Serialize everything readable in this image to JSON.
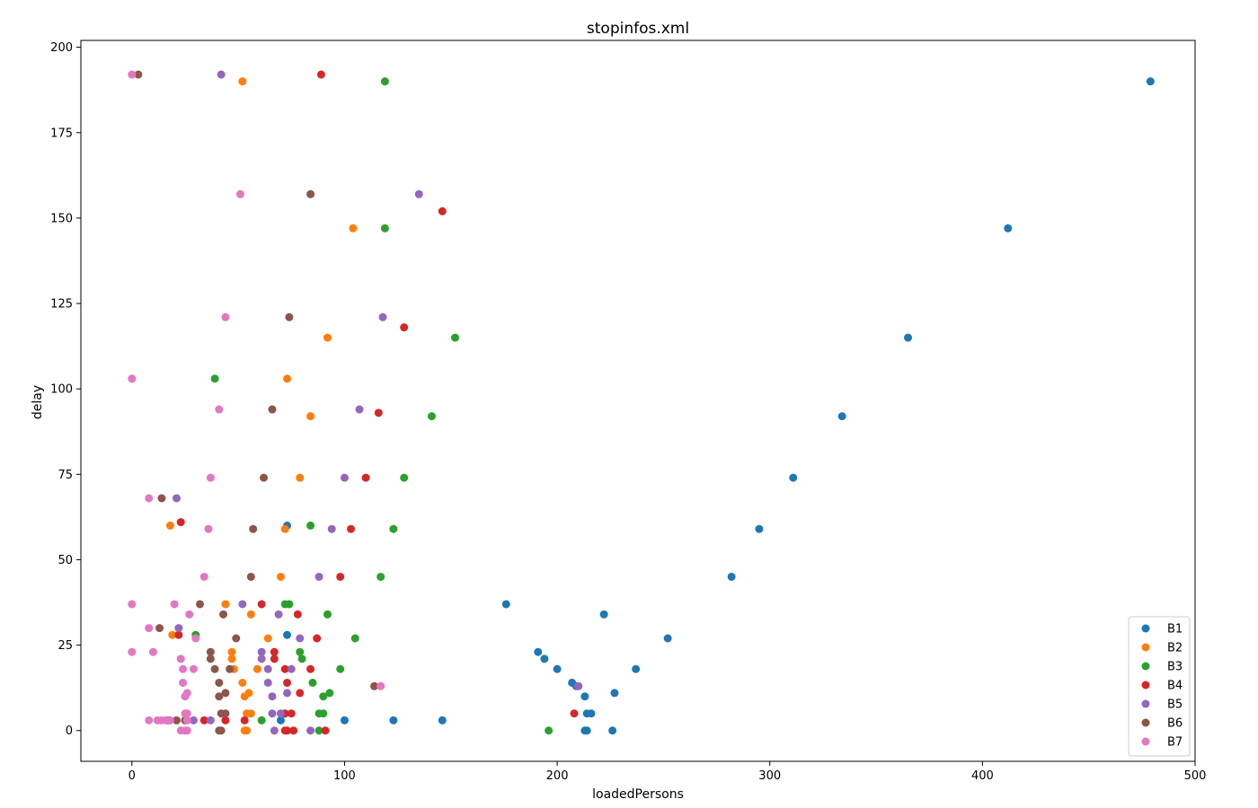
{
  "chart_data": {
    "type": "scatter",
    "title": "stopinfos.xml",
    "xlabel": "loadedPersons",
    "ylabel": "delay",
    "xlim": [
      -24,
      500
    ],
    "ylim": [
      -9,
      202
    ],
    "xticks": [
      0,
      100,
      200,
      300,
      400,
      500
    ],
    "yticks": [
      0,
      25,
      50,
      75,
      100,
      125,
      150,
      175,
      200
    ],
    "grid": false,
    "legend_position": "bottom-right",
    "series": [
      {
        "name": "B1",
        "color": "#1f77b4",
        "points": [
          [
            479,
            190
          ],
          [
            412,
            147
          ],
          [
            365,
            115
          ],
          [
            334,
            92
          ],
          [
            311,
            74
          ],
          [
            295,
            59
          ],
          [
            282,
            45
          ],
          [
            176,
            37
          ],
          [
            222,
            34
          ],
          [
            252,
            27
          ],
          [
            191,
            23
          ],
          [
            194,
            21
          ],
          [
            200,
            18
          ],
          [
            237,
            18
          ],
          [
            207,
            14
          ],
          [
            213,
            10
          ],
          [
            227,
            11
          ],
          [
            214,
            5
          ],
          [
            216,
            5
          ],
          [
            209,
            13
          ],
          [
            213,
            0
          ],
          [
            214,
            0
          ],
          [
            226,
            0
          ],
          [
            146,
            3
          ],
          [
            123,
            3
          ],
          [
            100,
            3
          ],
          [
            70,
            3
          ],
          [
            73,
            28
          ],
          [
            73,
            60
          ]
        ]
      },
      {
        "name": "B2",
        "color": "#ff7f0e",
        "points": [
          [
            52,
            190
          ],
          [
            104,
            147
          ],
          [
            92,
            115
          ],
          [
            73,
            103
          ],
          [
            84,
            92
          ],
          [
            79,
            74
          ],
          [
            18,
            60
          ],
          [
            72,
            59
          ],
          [
            70,
            45
          ],
          [
            44,
            37
          ],
          [
            56,
            34
          ],
          [
            64,
            27
          ],
          [
            19,
            28
          ],
          [
            47,
            23
          ],
          [
            47,
            21
          ],
          [
            48,
            18
          ],
          [
            59,
            18
          ],
          [
            52,
            14
          ],
          [
            55,
            11
          ],
          [
            53,
            10
          ],
          [
            54,
            5
          ],
          [
            56,
            5
          ],
          [
            53,
            0
          ],
          [
            54,
            0
          ]
        ]
      },
      {
        "name": "B3",
        "color": "#2ca02c",
        "points": [
          [
            119,
            190
          ],
          [
            119,
            147
          ],
          [
            152,
            115
          ],
          [
            39,
            103
          ],
          [
            141,
            92
          ],
          [
            128,
            74
          ],
          [
            84,
            60
          ],
          [
            123,
            59
          ],
          [
            117,
            45
          ],
          [
            72,
            37
          ],
          [
            74,
            37
          ],
          [
            92,
            34
          ],
          [
            105,
            27
          ],
          [
            30,
            28
          ],
          [
            79,
            23
          ],
          [
            80,
            21
          ],
          [
            98,
            18
          ],
          [
            85,
            14
          ],
          [
            93,
            11
          ],
          [
            90,
            10
          ],
          [
            88,
            5
          ],
          [
            90,
            5
          ],
          [
            196,
            0
          ],
          [
            88,
            0
          ],
          [
            61,
            3
          ]
        ]
      },
      {
        "name": "B4",
        "color": "#d62728",
        "points": [
          [
            89,
            192
          ],
          [
            146,
            152
          ],
          [
            128,
            118
          ],
          [
            116,
            93
          ],
          [
            110,
            74
          ],
          [
            23,
            61
          ],
          [
            103,
            59
          ],
          [
            98,
            45
          ],
          [
            61,
            37
          ],
          [
            78,
            34
          ],
          [
            87,
            27
          ],
          [
            22,
            28
          ],
          [
            67,
            23
          ],
          [
            67,
            21
          ],
          [
            72,
            18
          ],
          [
            84,
            18
          ],
          [
            73,
            14
          ],
          [
            79,
            11
          ],
          [
            208,
            5
          ],
          [
            75,
            5
          ],
          [
            72,
            5
          ],
          [
            72,
            0
          ],
          [
            73,
            0
          ],
          [
            76,
            0
          ],
          [
            91,
            0
          ],
          [
            53,
            3
          ],
          [
            44,
            3
          ],
          [
            34,
            3
          ]
        ]
      },
      {
        "name": "B5",
        "color": "#9467bd",
        "points": [
          [
            42,
            192
          ],
          [
            135,
            157
          ],
          [
            118,
            121
          ],
          [
            107,
            94
          ],
          [
            100,
            74
          ],
          [
            21,
            68
          ],
          [
            94,
            59
          ],
          [
            88,
            45
          ],
          [
            52,
            37
          ],
          [
            69,
            34
          ],
          [
            79,
            27
          ],
          [
            22,
            30
          ],
          [
            61,
            23
          ],
          [
            61,
            21
          ],
          [
            64,
            18
          ],
          [
            75,
            18
          ],
          [
            64,
            14
          ],
          [
            73,
            11
          ],
          [
            210,
            13
          ],
          [
            66,
            10
          ],
          [
            66,
            5
          ],
          [
            70,
            5
          ],
          [
            67,
            0
          ],
          [
            84,
            0
          ],
          [
            37,
            3
          ],
          [
            29,
            3
          ]
        ]
      },
      {
        "name": "B6",
        "color": "#8c564b",
        "points": [
          [
            3,
            192
          ],
          [
            84,
            157
          ],
          [
            74,
            121
          ],
          [
            66,
            94
          ],
          [
            62,
            74
          ],
          [
            14,
            68
          ],
          [
            57,
            59
          ],
          [
            56,
            45
          ],
          [
            32,
            37
          ],
          [
            43,
            34
          ],
          [
            49,
            27
          ],
          [
            13,
            30
          ],
          [
            37,
            23
          ],
          [
            37,
            21
          ],
          [
            39,
            18
          ],
          [
            46,
            18
          ],
          [
            41,
            14
          ],
          [
            44,
            11
          ],
          [
            114,
            13
          ],
          [
            41,
            10
          ],
          [
            42,
            5
          ],
          [
            44,
            5
          ],
          [
            41,
            0
          ],
          [
            42,
            0
          ],
          [
            25,
            3
          ],
          [
            21,
            3
          ],
          [
            17,
            3
          ]
        ]
      },
      {
        "name": "B7",
        "color": "#e377c2",
        "points": [
          [
            0,
            192
          ],
          [
            51,
            157
          ],
          [
            44,
            121
          ],
          [
            41,
            94
          ],
          [
            37,
            74
          ],
          [
            8,
            68
          ],
          [
            36,
            59
          ],
          [
            34,
            45
          ],
          [
            0,
            103
          ],
          [
            0,
            37
          ],
          [
            20,
            37
          ],
          [
            27,
            34
          ],
          [
            30,
            27
          ],
          [
            8,
            30
          ],
          [
            0,
            23
          ],
          [
            10,
            23
          ],
          [
            23,
            21
          ],
          [
            24,
            18
          ],
          [
            29,
            18
          ],
          [
            24,
            14
          ],
          [
            26,
            11
          ],
          [
            117,
            13
          ],
          [
            25,
            10
          ],
          [
            25,
            5
          ],
          [
            26,
            5
          ],
          [
            23,
            0
          ],
          [
            25,
            0
          ],
          [
            26,
            0
          ],
          [
            8,
            3
          ],
          [
            12,
            3
          ],
          [
            14,
            3
          ],
          [
            16,
            3
          ],
          [
            18,
            3
          ],
          [
            26,
            3
          ]
        ]
      }
    ]
  }
}
